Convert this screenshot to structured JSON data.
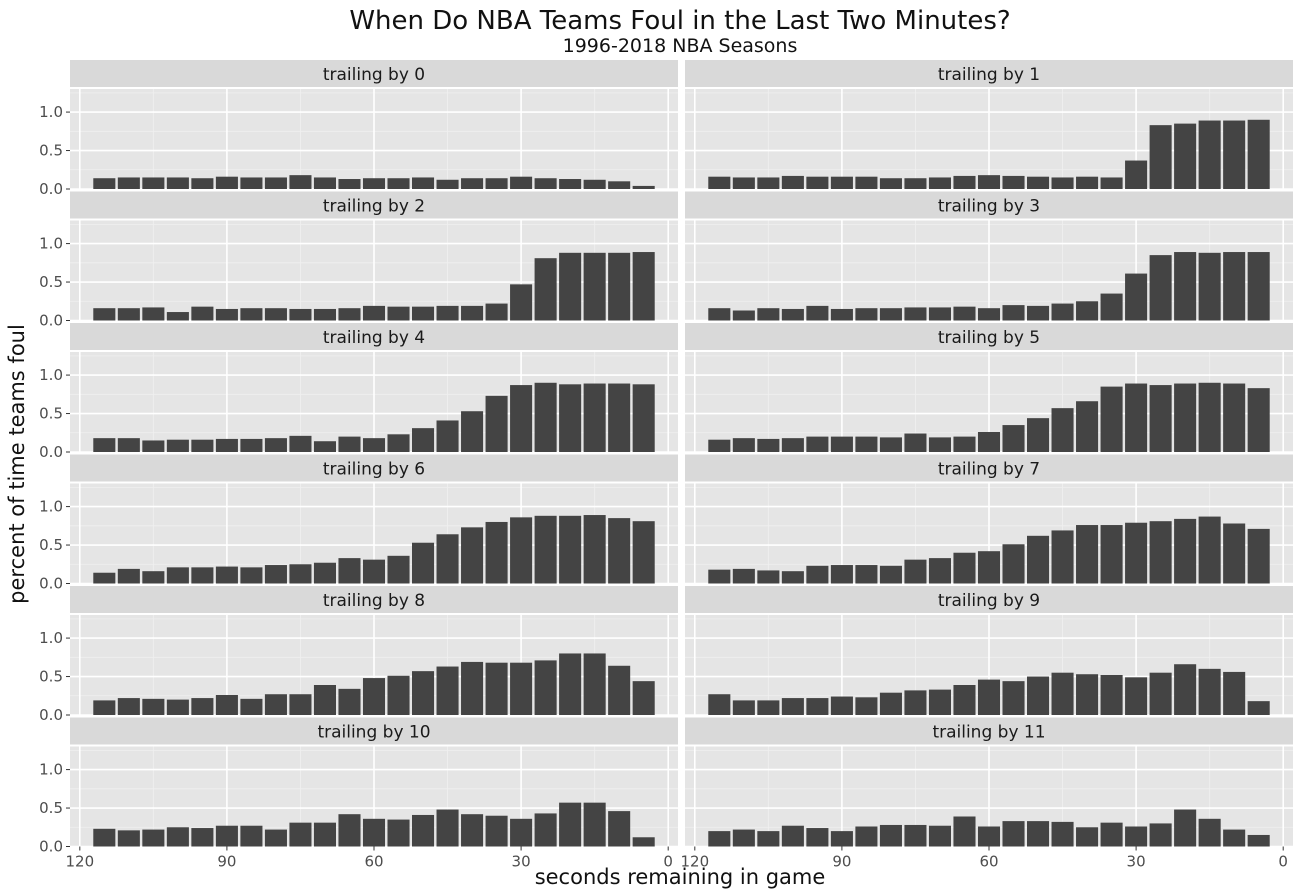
{
  "chart_data": {
    "type": "bar",
    "title": "When Do NBA Teams Foul in the Last Two Minutes?",
    "subtitle": "1996-2018 NBA Seasons",
    "xlabel": "seconds remaining in game",
    "ylabel": "percent of time teams foul",
    "x_reversed": true,
    "xlim": [
      122,
      -2
    ],
    "ylim": [
      0,
      1.3
    ],
    "x_ticks": [
      120,
      90,
      60,
      30,
      0
    ],
    "y_ticks": [
      0,
      0.5,
      1
    ],
    "y_tick_labels": [
      "0.0",
      "0.5",
      "1.0"
    ],
    "x": [
      115,
      110,
      105,
      100,
      95,
      90,
      85,
      80,
      75,
      70,
      65,
      60,
      55,
      50,
      45,
      40,
      35,
      30,
      25,
      20,
      15,
      10,
      5
    ],
    "panels": [
      {
        "label": "trailing by 0",
        "values": [
          0.14,
          0.15,
          0.15,
          0.15,
          0.14,
          0.16,
          0.15,
          0.15,
          0.18,
          0.15,
          0.13,
          0.14,
          0.14,
          0.15,
          0.12,
          0.14,
          0.14,
          0.16,
          0.14,
          0.13,
          0.12,
          0.1,
          0.04
        ]
      },
      {
        "label": "trailing by 1",
        "values": [
          0.16,
          0.15,
          0.15,
          0.17,
          0.16,
          0.16,
          0.16,
          0.14,
          0.14,
          0.15,
          0.17,
          0.18,
          0.17,
          0.16,
          0.15,
          0.16,
          0.15,
          0.37,
          0.83,
          0.85,
          0.89,
          0.89,
          0.9
        ]
      },
      {
        "label": "trailing by 2",
        "values": [
          0.16,
          0.16,
          0.17,
          0.11,
          0.18,
          0.15,
          0.16,
          0.16,
          0.15,
          0.15,
          0.16,
          0.19,
          0.18,
          0.18,
          0.19,
          0.19,
          0.22,
          0.47,
          0.81,
          0.88,
          0.88,
          0.88,
          0.89
        ]
      },
      {
        "label": "trailing by 3",
        "values": [
          0.16,
          0.13,
          0.16,
          0.15,
          0.19,
          0.15,
          0.16,
          0.16,
          0.17,
          0.17,
          0.18,
          0.16,
          0.2,
          0.19,
          0.22,
          0.25,
          0.35,
          0.61,
          0.85,
          0.89,
          0.88,
          0.89,
          0.89
        ]
      },
      {
        "label": "trailing by 4",
        "values": [
          0.18,
          0.18,
          0.15,
          0.16,
          0.16,
          0.17,
          0.17,
          0.18,
          0.21,
          0.14,
          0.2,
          0.18,
          0.23,
          0.31,
          0.41,
          0.53,
          0.73,
          0.87,
          0.9,
          0.88,
          0.89,
          0.89,
          0.88
        ]
      },
      {
        "label": "trailing by 5",
        "values": [
          0.16,
          0.18,
          0.17,
          0.18,
          0.2,
          0.2,
          0.2,
          0.19,
          0.24,
          0.19,
          0.2,
          0.26,
          0.35,
          0.44,
          0.57,
          0.66,
          0.85,
          0.89,
          0.87,
          0.89,
          0.9,
          0.89,
          0.83
        ]
      },
      {
        "label": "trailing by 6",
        "values": [
          0.14,
          0.19,
          0.16,
          0.21,
          0.21,
          0.22,
          0.21,
          0.24,
          0.25,
          0.27,
          0.33,
          0.31,
          0.36,
          0.53,
          0.64,
          0.73,
          0.8,
          0.86,
          0.88,
          0.88,
          0.89,
          0.85,
          0.81
        ]
      },
      {
        "label": "trailing by 7",
        "values": [
          0.18,
          0.19,
          0.17,
          0.16,
          0.23,
          0.24,
          0.24,
          0.23,
          0.31,
          0.33,
          0.4,
          0.42,
          0.51,
          0.62,
          0.69,
          0.76,
          0.76,
          0.79,
          0.81,
          0.84,
          0.87,
          0.78,
          0.71
        ]
      },
      {
        "label": "trailing by 8",
        "values": [
          0.19,
          0.22,
          0.21,
          0.2,
          0.22,
          0.26,
          0.21,
          0.27,
          0.27,
          0.39,
          0.34,
          0.48,
          0.51,
          0.57,
          0.63,
          0.69,
          0.68,
          0.68,
          0.71,
          0.8,
          0.8,
          0.64,
          0.44
        ]
      },
      {
        "label": "trailing by 9",
        "values": [
          0.27,
          0.19,
          0.19,
          0.22,
          0.22,
          0.24,
          0.23,
          0.29,
          0.32,
          0.33,
          0.39,
          0.46,
          0.44,
          0.5,
          0.55,
          0.53,
          0.52,
          0.49,
          0.55,
          0.66,
          0.6,
          0.56,
          0.18
        ]
      },
      {
        "label": "trailing by 10",
        "values": [
          0.23,
          0.21,
          0.22,
          0.25,
          0.24,
          0.27,
          0.27,
          0.22,
          0.31,
          0.31,
          0.42,
          0.36,
          0.35,
          0.41,
          0.48,
          0.42,
          0.4,
          0.36,
          0.43,
          0.57,
          0.57,
          0.46,
          0.12
        ]
      },
      {
        "label": "trailing by 11",
        "values": [
          0.2,
          0.22,
          0.2,
          0.27,
          0.24,
          0.2,
          0.26,
          0.28,
          0.28,
          0.27,
          0.39,
          0.26,
          0.33,
          0.33,
          0.32,
          0.25,
          0.31,
          0.26,
          0.3,
          0.48,
          0.36,
          0.22,
          0.15
        ]
      }
    ],
    "colors": {
      "bar": "#444444",
      "panel_bg": "#e5e5e5",
      "strip_bg": "#d9d9d9",
      "grid_major": "#ffffff",
      "grid_minor": "#f0f0f0"
    }
  }
}
